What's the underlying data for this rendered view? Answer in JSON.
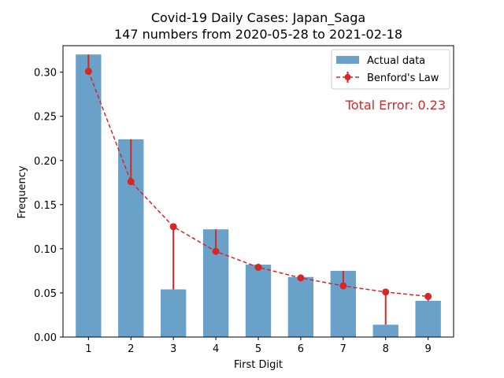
{
  "chart_data": {
    "type": "bar",
    "title": "Covid-19 Daily Cases: Japan_Saga",
    "subtitle": "147 numbers from 2020-05-28 to 2021-02-18",
    "xlabel": "First Digit",
    "ylabel": "Frequency",
    "categories": [
      1,
      2,
      3,
      4,
      5,
      6,
      7,
      8,
      9
    ],
    "ylim": [
      0,
      0.33
    ],
    "yticks": [
      "0.00",
      "0.05",
      "0.10",
      "0.15",
      "0.20",
      "0.25",
      "0.30"
    ],
    "grid": false,
    "legend_position": "top-right",
    "series": [
      {
        "name": "Actual data",
        "type": "bar",
        "color": "#6aa1c9",
        "values": [
          0.32,
          0.224,
          0.054,
          0.122,
          0.082,
          0.068,
          0.075,
          0.014,
          0.041
        ]
      },
      {
        "name": "Benford's Law",
        "type": "line",
        "style": "dashed with circle markers and error bars to actual values",
        "color": "#d62728",
        "values": [
          0.301,
          0.176,
          0.125,
          0.097,
          0.079,
          0.067,
          0.058,
          0.051,
          0.046
        ]
      }
    ],
    "annotation": "Total Error: 0.23",
    "annotation_color": "#d62728"
  }
}
